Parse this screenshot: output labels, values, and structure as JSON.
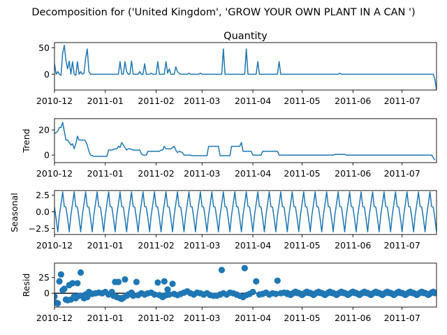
{
  "figure": {
    "suptitle": "Decomposition for ('United Kingdom', 'GROW YOUR OWN PLANT IN A CAN ')"
  },
  "colors": {
    "line": "#1f77b4",
    "marker": "#1f77b4",
    "zero_line": "#000000"
  },
  "x_axis": {
    "ticks": [
      {
        "date": "2010-12-01",
        "label": "2010-12"
      },
      {
        "date": "2011-01-01",
        "label": "2011-01"
      },
      {
        "date": "2011-02-01",
        "label": "2011-02"
      },
      {
        "date": "2011-03-01",
        "label": "2011-03"
      },
      {
        "date": "2011-04-01",
        "label": "2011-04"
      },
      {
        "date": "2011-05-01",
        "label": "2011-05"
      },
      {
        "date": "2011-06-01",
        "label": "2011-06"
      },
      {
        "date": "2011-07-01",
        "label": "2011-07"
      }
    ],
    "range": [
      "2010-12-01",
      "2011-07-22"
    ]
  },
  "chart_data": [
    {
      "type": "line",
      "title": "Quantity",
      "ylabel": "",
      "ylim": [
        -30,
        60
      ],
      "yticks": [
        {
          "v": 50,
          "label": "50"
        },
        {
          "v": 0,
          "label": "0"
        }
      ],
      "points": [
        [
          "2010-12-01",
          20
        ],
        [
          "2010-12-02",
          0
        ],
        [
          "2010-12-03",
          5
        ],
        [
          "2010-12-04",
          0
        ],
        [
          "2010-12-05",
          -2
        ],
        [
          "2010-12-06",
          40
        ],
        [
          "2010-12-07",
          55
        ],
        [
          "2010-12-08",
          25
        ],
        [
          "2010-12-09",
          10
        ],
        [
          "2010-12-10",
          25
        ],
        [
          "2010-12-11",
          0
        ],
        [
          "2010-12-12",
          24
        ],
        [
          "2010-12-13",
          0
        ],
        [
          "2010-12-14",
          -2
        ],
        [
          "2010-12-15",
          24
        ],
        [
          "2010-12-16",
          0
        ],
        [
          "2010-12-17",
          5
        ],
        [
          "2010-12-18",
          0
        ],
        [
          "2010-12-19",
          2
        ],
        [
          "2010-12-20",
          30
        ],
        [
          "2010-12-21",
          48
        ],
        [
          "2010-12-22",
          5
        ],
        [
          "2010-12-23",
          0
        ],
        [
          "2011-01-09",
          0
        ],
        [
          "2011-01-10",
          24
        ],
        [
          "2011-01-11",
          0
        ],
        [
          "2011-01-12",
          0
        ],
        [
          "2011-01-13",
          24
        ],
        [
          "2011-01-14",
          5
        ],
        [
          "2011-01-15",
          0
        ],
        [
          "2011-01-16",
          0
        ],
        [
          "2011-01-17",
          25
        ],
        [
          "2011-01-18",
          0
        ],
        [
          "2011-01-19",
          0
        ],
        [
          "2011-01-21",
          0
        ],
        [
          "2011-01-22",
          5
        ],
        [
          "2011-01-23",
          0
        ],
        [
          "2011-01-24",
          0
        ],
        [
          "2011-01-25",
          20
        ],
        [
          "2011-01-26",
          0
        ],
        [
          "2011-01-28",
          0
        ],
        [
          "2011-01-29",
          2
        ],
        [
          "2011-01-30",
          0
        ],
        [
          "2011-02-01",
          0
        ],
        [
          "2011-02-02",
          24
        ],
        [
          "2011-02-03",
          0
        ],
        [
          "2011-02-06",
          0
        ],
        [
          "2011-02-07",
          24
        ],
        [
          "2011-02-08",
          2
        ],
        [
          "2011-02-09",
          10
        ],
        [
          "2011-02-10",
          0
        ],
        [
          "2011-02-12",
          0
        ],
        [
          "2011-02-13",
          14
        ],
        [
          "2011-02-14",
          5
        ],
        [
          "2011-02-15",
          2
        ],
        [
          "2011-02-16",
          0
        ],
        [
          "2011-02-20",
          0
        ],
        [
          "2011-02-21",
          2
        ],
        [
          "2011-02-22",
          0
        ],
        [
          "2011-02-27",
          0
        ],
        [
          "2011-02-28",
          2
        ],
        [
          "2011-03-01",
          0
        ],
        [
          "2011-03-13",
          0
        ],
        [
          "2011-03-14",
          48
        ],
        [
          "2011-03-15",
          0
        ],
        [
          "2011-03-27",
          0
        ],
        [
          "2011-03-28",
          48
        ],
        [
          "2011-03-29",
          0
        ],
        [
          "2011-04-03",
          0
        ],
        [
          "2011-04-04",
          24
        ],
        [
          "2011-04-05",
          0
        ],
        [
          "2011-04-16",
          0
        ],
        [
          "2011-04-17",
          24
        ],
        [
          "2011-04-18",
          0
        ],
        [
          "2011-05-23",
          0
        ],
        [
          "2011-05-24",
          2
        ],
        [
          "2011-05-25",
          0
        ],
        [
          "2011-07-20",
          0
        ],
        [
          "2011-07-21",
          -10
        ],
        [
          "2011-07-22",
          -30
        ]
      ]
    },
    {
      "type": "line",
      "title": "",
      "ylabel": "Trend",
      "ylim": [
        -6,
        29
      ],
      "yticks": [
        {
          "v": 20,
          "label": "20"
        },
        {
          "v": 0,
          "label": "0"
        }
      ],
      "points": [
        [
          "2010-12-01",
          17
        ],
        [
          "2010-12-02",
          18
        ],
        [
          "2010-12-03",
          19
        ],
        [
          "2010-12-04",
          22
        ],
        [
          "2010-12-05",
          22
        ],
        [
          "2010-12-06",
          26
        ],
        [
          "2010-12-07",
          19
        ],
        [
          "2010-12-08",
          12
        ],
        [
          "2010-12-09",
          12
        ],
        [
          "2010-12-10",
          10
        ],
        [
          "2010-12-11",
          8
        ],
        [
          "2010-12-12",
          9
        ],
        [
          "2010-12-13",
          5
        ],
        [
          "2010-12-14",
          9
        ],
        [
          "2010-12-15",
          15
        ],
        [
          "2010-12-16",
          12
        ],
        [
          "2010-12-17",
          12
        ],
        [
          "2010-12-19",
          12
        ],
        [
          "2010-12-20",
          11
        ],
        [
          "2010-12-21",
          8
        ],
        [
          "2010-12-22",
          3
        ],
        [
          "2010-12-23",
          0
        ],
        [
          "2010-12-25",
          -1
        ],
        [
          "2011-01-02",
          -1
        ],
        [
          "2011-01-03",
          4
        ],
        [
          "2011-01-05",
          4
        ],
        [
          "2011-01-07",
          5
        ],
        [
          "2011-01-08",
          5
        ],
        [
          "2011-01-09",
          7
        ],
        [
          "2011-01-10",
          6
        ],
        [
          "2011-01-11",
          10
        ],
        [
          "2011-01-12",
          8
        ],
        [
          "2011-01-13",
          6
        ],
        [
          "2011-01-14",
          4
        ],
        [
          "2011-01-15",
          5
        ],
        [
          "2011-01-16",
          5
        ],
        [
          "2011-01-18",
          4
        ],
        [
          "2011-01-20",
          4
        ],
        [
          "2011-01-22",
          4
        ],
        [
          "2011-01-23",
          1
        ],
        [
          "2011-01-24",
          0
        ],
        [
          "2011-01-25",
          0
        ],
        [
          "2011-01-26",
          0
        ],
        [
          "2011-01-27",
          3
        ],
        [
          "2011-02-03",
          3
        ],
        [
          "2011-02-04",
          4
        ],
        [
          "2011-02-05",
          4
        ],
        [
          "2011-02-06",
          7
        ],
        [
          "2011-02-07",
          5
        ],
        [
          "2011-02-08",
          5
        ],
        [
          "2011-02-10",
          5
        ],
        [
          "2011-02-11",
          6
        ],
        [
          "2011-02-12",
          7
        ],
        [
          "2011-02-13",
          4
        ],
        [
          "2011-02-14",
          2
        ],
        [
          "2011-02-15",
          3
        ],
        [
          "2011-02-17",
          2
        ],
        [
          "2011-02-18",
          0
        ],
        [
          "2011-02-20",
          0
        ],
        [
          "2011-02-21",
          0
        ],
        [
          "2011-02-22",
          0
        ],
        [
          "2011-02-23",
          -0.5
        ],
        [
          "2011-03-04",
          -0.5
        ],
        [
          "2011-03-05",
          7
        ],
        [
          "2011-03-10",
          7
        ],
        [
          "2011-03-11",
          7
        ],
        [
          "2011-03-12",
          -0.5
        ],
        [
          "2011-03-18",
          -0.5
        ],
        [
          "2011-03-19",
          7
        ],
        [
          "2011-03-24",
          7
        ],
        [
          "2011-03-25",
          10
        ],
        [
          "2011-03-26",
          3
        ],
        [
          "2011-03-31",
          3
        ],
        [
          "2011-04-01",
          0
        ],
        [
          "2011-04-06",
          0
        ],
        [
          "2011-04-07",
          3
        ],
        [
          "2011-04-15",
          3
        ],
        [
          "2011-04-16",
          3
        ],
        [
          "2011-04-17",
          0
        ],
        [
          "2011-05-20",
          0
        ],
        [
          "2011-05-21",
          0.5
        ],
        [
          "2011-05-27",
          0.5
        ],
        [
          "2011-05-28",
          0
        ],
        [
          "2011-07-18",
          0
        ],
        [
          "2011-07-19",
          0
        ],
        [
          "2011-07-20",
          -2
        ],
        [
          "2011-07-21",
          -4
        ]
      ]
    },
    {
      "type": "line",
      "title": "",
      "ylabel": "Seasonal",
      "ylim": [
        -3.4,
        3.2
      ],
      "yticks": [
        {
          "v": 2.5,
          "label": "2.5"
        },
        {
          "v": 0,
          "label": "0.0"
        },
        {
          "v": -2.5,
          "label": "−2.5"
        }
      ],
      "seasonal_pattern": [
        0.7,
        -1.0,
        -3.0,
        -0.5,
        1.2,
        3.0,
        0.8
      ],
      "start_date": "2010-12-01",
      "end_date": "2011-07-22"
    },
    {
      "type": "scatter",
      "title": "",
      "ylabel": "Resid",
      "ylim": [
        -22,
        48
      ],
      "yticks": [
        {
          "v": 25,
          "label": "25"
        },
        {
          "v": 0,
          "label": "0"
        }
      ],
      "zero_line": true,
      "points": [
        [
          "2010-12-01",
          -5
        ],
        [
          "2010-12-02",
          -15
        ],
        [
          "2010-12-03",
          -16
        ],
        [
          "2010-12-04",
          19
        ],
        [
          "2010-12-05",
          30
        ],
        [
          "2010-12-06",
          5
        ],
        [
          "2010-12-07",
          7
        ],
        [
          "2010-12-08",
          -10
        ],
        [
          "2010-12-09",
          -11
        ],
        [
          "2010-12-10",
          13
        ],
        [
          "2010-12-11",
          -10
        ],
        [
          "2010-12-12",
          16
        ],
        [
          "2010-12-13",
          -5
        ],
        [
          "2010-12-14",
          -8
        ],
        [
          "2010-12-15",
          16
        ],
        [
          "2010-12-16",
          -4
        ],
        [
          "2010-12-17",
          33
        ],
        [
          "2010-12-18",
          -4
        ],
        [
          "2010-12-19",
          -8
        ],
        [
          "2010-12-20",
          -2
        ],
        [
          "2010-12-21",
          -6
        ],
        [
          "2010-12-22",
          2
        ],
        [
          "2010-12-23",
          0
        ],
        [
          "2010-12-24",
          -1
        ],
        [
          "2010-12-26",
          0
        ],
        [
          "2010-12-28",
          1
        ],
        [
          "2010-12-30",
          0
        ],
        [
          "2011-01-01",
          2
        ],
        [
          "2011-01-03",
          -2
        ],
        [
          "2011-01-05",
          2
        ],
        [
          "2011-01-06",
          -4
        ],
        [
          "2011-01-07",
          18
        ],
        [
          "2011-01-08",
          -6
        ],
        [
          "2011-01-09",
          18
        ],
        [
          "2011-01-10",
          -8
        ],
        [
          "2011-01-11",
          -9
        ],
        [
          "2011-01-12",
          -7
        ],
        [
          "2011-01-13",
          22
        ],
        [
          "2011-01-14",
          -4
        ],
        [
          "2011-01-15",
          -2
        ],
        [
          "2011-01-17",
          1
        ],
        [
          "2011-01-18",
          -4
        ],
        [
          "2011-01-20",
          18
        ],
        [
          "2011-01-21",
          -3
        ],
        [
          "2011-01-23",
          0
        ],
        [
          "2011-01-25",
          -2
        ],
        [
          "2011-01-27",
          0
        ],
        [
          "2011-01-29",
          1
        ],
        [
          "2011-01-31",
          -2
        ],
        [
          "2011-02-02",
          17
        ],
        [
          "2011-02-03",
          -3
        ],
        [
          "2011-02-04",
          -4
        ],
        [
          "2011-02-05",
          -6
        ],
        [
          "2011-02-06",
          19
        ],
        [
          "2011-02-07",
          -3
        ],
        [
          "2011-02-08",
          6
        ],
        [
          "2011-02-09",
          -2
        ],
        [
          "2011-02-11",
          15
        ],
        [
          "2011-02-12",
          -1
        ],
        [
          "2011-02-14",
          -3
        ],
        [
          "2011-02-16",
          -1
        ],
        [
          "2011-02-18",
          1
        ],
        [
          "2011-02-20",
          3
        ],
        [
          "2011-02-22",
          0
        ],
        [
          "2011-02-24",
          -2
        ],
        [
          "2011-02-26",
          1
        ],
        [
          "2011-02-28",
          0
        ],
        [
          "2011-03-02",
          -2
        ],
        [
          "2011-03-04",
          0
        ],
        [
          "2011-03-06",
          -3
        ],
        [
          "2011-03-08",
          -4
        ],
        [
          "2011-03-10",
          -4
        ],
        [
          "2011-03-12",
          -2
        ],
        [
          "2011-03-13",
          37
        ],
        [
          "2011-03-14",
          0
        ],
        [
          "2011-03-16",
          -2
        ],
        [
          "2011-03-18",
          1
        ],
        [
          "2011-03-20",
          0
        ],
        [
          "2011-03-22",
          -2
        ],
        [
          "2011-03-24",
          -4
        ],
        [
          "2011-03-26",
          -6
        ],
        [
          "2011-03-27",
          40
        ],
        [
          "2011-03-28",
          -3
        ],
        [
          "2011-03-30",
          -1
        ],
        [
          "2011-04-01",
          2
        ],
        [
          "2011-04-03",
          19
        ],
        [
          "2011-04-05",
          -2
        ],
        [
          "2011-04-07",
          -1
        ],
        [
          "2011-04-09",
          1
        ],
        [
          "2011-04-11",
          -2
        ],
        [
          "2011-04-13",
          0
        ],
        [
          "2011-04-15",
          -1
        ],
        [
          "2011-04-16",
          20
        ],
        [
          "2011-04-18",
          0
        ],
        [
          "2011-04-20",
          1
        ],
        [
          "2011-04-22",
          -1
        ]
      ],
      "cycle_fill": {
        "from": "2011-04-22",
        "to": "2011-07-22",
        "pattern": [
          0.5,
          -1.0,
          -2.5,
          -0.8,
          1.0,
          2.4,
          0.3
        ]
      }
    }
  ]
}
